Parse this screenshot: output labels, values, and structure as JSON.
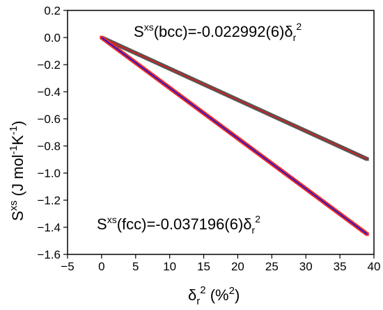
{
  "chart_data": {
    "type": "scatter",
    "xlabel": {
      "base": "δ",
      "sub": "r",
      "sup": "2",
      "rest": " (%",
      "rest_sup": "2",
      "close": ")"
    },
    "ylabel": {
      "base": "S",
      "sup": "xs",
      "rest1": " (J mol",
      "sup2": "-1",
      "rest2": "K",
      "sup3": "-1",
      "close": ")"
    },
    "xlim": [
      -5,
      40
    ],
    "ylim": [
      -1.6,
      0.2
    ],
    "xticks": [
      -5,
      0,
      5,
      10,
      15,
      20,
      25,
      30,
      35,
      40
    ],
    "yticks": [
      0.2,
      0.0,
      -0.2,
      -0.4,
      -0.6,
      -0.8,
      -1.0,
      -1.2,
      -1.4,
      -1.6
    ],
    "xtick_labels": [
      "−5",
      "0",
      "5",
      "10",
      "15",
      "20",
      "25",
      "30",
      "35",
      "40"
    ],
    "ytick_labels": [
      "0.2",
      "0.0",
      "−0.2",
      "−0.4",
      "−0.6",
      "−0.8",
      "−1.0",
      "−1.2",
      "−1.4",
      "−1.6"
    ],
    "grid": false,
    "series": [
      {
        "name": "bcc",
        "slope": -0.022992,
        "x_range": [
          0,
          39
        ],
        "marker_color": "#555555",
        "fit_color": "#d02020",
        "marker": "square"
      },
      {
        "name": "fcc",
        "slope": -0.037196,
        "x_range": [
          0,
          39
        ],
        "marker_color": "#ee2a2a",
        "fit_color": "#1a1ad0",
        "marker": "square"
      }
    ],
    "annotations": [
      {
        "id": "bcc",
        "prefix": "S",
        "sup": "xs",
        "body": "(bcc)=-0.022992(6)δ",
        "sub": "r",
        "sup2": "2"
      },
      {
        "id": "fcc",
        "prefix": "S",
        "sup": "xs",
        "body": "(fcc)=-0.037196(6)δ",
        "sub": "r",
        "sup2": "2"
      }
    ]
  }
}
